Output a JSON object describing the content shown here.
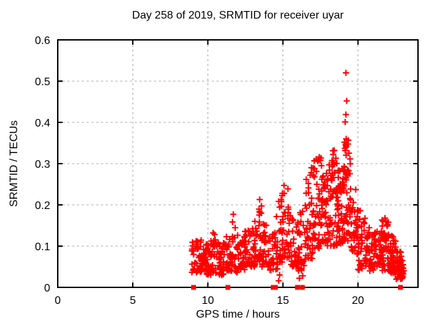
{
  "chart_data": {
    "type": "scatter",
    "title": "Day 258 of 2019, SRMTID for receiver uyar",
    "xlabel": "GPS time / hours",
    "ylabel": "SRMTID / TECUs",
    "xlim": [
      0,
      24
    ],
    "ylim": [
      0,
      0.6
    ],
    "xticks": [
      0,
      5,
      10,
      15,
      20
    ],
    "yticks": [
      0,
      0.1,
      0.2,
      0.3,
      0.4,
      0.5,
      0.6
    ],
    "grid": true,
    "legend": false,
    "marker": "plus",
    "marker_color": "#ff0000",
    "grid_color": "#a8a8a8",
    "border_color": "#000000",
    "seed": 2019258,
    "notable_points": [
      [
        19.2,
        0.52
      ],
      [
        19.25,
        0.452
      ],
      [
        19.2,
        0.419
      ],
      [
        19.15,
        0.401
      ],
      [
        19.22,
        0.36
      ],
      [
        19.1,
        0.352
      ],
      [
        19.18,
        0.345
      ],
      [
        18.42,
        0.332
      ],
      [
        18.35,
        0.322
      ],
      [
        17.42,
        0.316
      ],
      [
        17.32,
        0.306
      ],
      [
        16.9,
        0.29
      ],
      [
        16.82,
        0.272
      ],
      [
        15.08,
        0.247
      ],
      [
        14.97,
        0.228
      ],
      [
        13.45,
        0.213
      ],
      [
        11.7,
        0.177
      ],
      [
        10.35,
        0.132
      ],
      [
        14.72,
        0.016
      ],
      [
        14.78,
        0.03
      ],
      [
        16.1,
        0.022
      ],
      [
        16.32,
        0.028
      ],
      [
        20.15,
        0.186
      ],
      [
        21.8,
        0.168
      ],
      [
        22.95,
        0.065
      ],
      [
        23.0,
        0.055
      ],
      [
        23.05,
        0.04
      ]
    ],
    "baseline_marker_x": [
      9.05,
      11.33,
      14.35,
      14.5,
      15.97,
      16.3,
      22.83
    ],
    "density_clusters": [
      {
        "x0": 8.92,
        "x1": 9.6,
        "n": 45,
        "ymin": 0.035,
        "ymax": 0.115,
        "bias": 1.3
      },
      {
        "x0": 9.6,
        "x1": 10.2,
        "n": 42,
        "ymin": 0.03,
        "ymax": 0.105,
        "bias": 1.3
      },
      {
        "x0": 10.2,
        "x1": 10.55,
        "n": 22,
        "ymin": 0.035,
        "ymax": 0.13,
        "bias": 1.5
      },
      {
        "x0": 10.55,
        "x1": 11.15,
        "n": 38,
        "ymin": 0.03,
        "ymax": 0.11,
        "bias": 1.3
      },
      {
        "x0": 11.15,
        "x1": 11.6,
        "n": 30,
        "ymin": 0.04,
        "ymax": 0.125,
        "bias": 1.4
      },
      {
        "x0": 11.55,
        "x1": 11.85,
        "n": 16,
        "ymin": 0.05,
        "ymax": 0.175,
        "bias": 1.7
      },
      {
        "x0": 11.85,
        "x1": 12.45,
        "n": 40,
        "ymin": 0.03,
        "ymax": 0.13,
        "bias": 1.3
      },
      {
        "x0": 12.45,
        "x1": 12.95,
        "n": 34,
        "ymin": 0.05,
        "ymax": 0.16,
        "bias": 1.5
      },
      {
        "x0": 12.95,
        "x1": 13.3,
        "n": 26,
        "ymin": 0.05,
        "ymax": 0.165,
        "bias": 1.4
      },
      {
        "x0": 13.3,
        "x1": 13.6,
        "n": 18,
        "ymin": 0.06,
        "ymax": 0.215,
        "bias": 1.7
      },
      {
        "x0": 13.6,
        "x1": 14.1,
        "n": 32,
        "ymin": 0.05,
        "ymax": 0.155,
        "bias": 1.4
      },
      {
        "x0": 14.1,
        "x1": 14.65,
        "n": 32,
        "ymin": 0.04,
        "ymax": 0.185,
        "bias": 1.5
      },
      {
        "x0": 14.65,
        "x1": 15.05,
        "n": 30,
        "ymin": 0.06,
        "ymax": 0.23,
        "bias": 1.6
      },
      {
        "x0": 15.0,
        "x1": 15.4,
        "n": 24,
        "ymin": 0.07,
        "ymax": 0.25,
        "bias": 1.6
      },
      {
        "x0": 15.4,
        "x1": 15.98,
        "n": 32,
        "ymin": 0.05,
        "ymax": 0.175,
        "bias": 1.4
      },
      {
        "x0": 15.98,
        "x1": 16.5,
        "n": 34,
        "ymin": 0.04,
        "ymax": 0.21,
        "bias": 1.5
      },
      {
        "x0": 16.5,
        "x1": 17.0,
        "n": 38,
        "ymin": 0.07,
        "ymax": 0.285,
        "bias": 1.6
      },
      {
        "x0": 17.0,
        "x1": 17.55,
        "n": 46,
        "ymin": 0.09,
        "ymax": 0.32,
        "bias": 1.5
      },
      {
        "x0": 17.55,
        "x1": 18.05,
        "n": 46,
        "ymin": 0.1,
        "ymax": 0.3,
        "bias": 1.3
      },
      {
        "x0": 18.05,
        "x1": 18.6,
        "n": 50,
        "ymin": 0.1,
        "ymax": 0.335,
        "bias": 1.4
      },
      {
        "x0": 18.6,
        "x1": 19.05,
        "n": 48,
        "ymin": 0.1,
        "ymax": 0.305,
        "bias": 1.2
      },
      {
        "x0": 19.05,
        "x1": 19.5,
        "n": 50,
        "ymin": 0.1,
        "ymax": 0.365,
        "bias": 1.1
      },
      {
        "x0": 19.5,
        "x1": 20.0,
        "n": 38,
        "ymin": 0.08,
        "ymax": 0.25,
        "bias": 1.4
      },
      {
        "x0": 20.0,
        "x1": 20.5,
        "n": 34,
        "ymin": 0.04,
        "ymax": 0.19,
        "bias": 1.3
      },
      {
        "x0": 20.5,
        "x1": 21.05,
        "n": 40,
        "ymin": 0.04,
        "ymax": 0.15,
        "bias": 1.2
      },
      {
        "x0": 21.05,
        "x1": 21.6,
        "n": 40,
        "ymin": 0.045,
        "ymax": 0.145,
        "bias": 1.2
      },
      {
        "x0": 21.6,
        "x1": 22.05,
        "n": 42,
        "ymin": 0.04,
        "ymax": 0.17,
        "bias": 1.4
      },
      {
        "x0": 22.05,
        "x1": 22.55,
        "n": 44,
        "ymin": 0.03,
        "ymax": 0.125,
        "bias": 1.3
      },
      {
        "x0": 22.55,
        "x1": 22.95,
        "n": 36,
        "ymin": 0.02,
        "ymax": 0.095,
        "bias": 1.3
      },
      {
        "x0": 22.9,
        "x1": 23.15,
        "n": 8,
        "ymin": 0.025,
        "ymax": 0.06,
        "bias": 1.2
      }
    ]
  }
}
